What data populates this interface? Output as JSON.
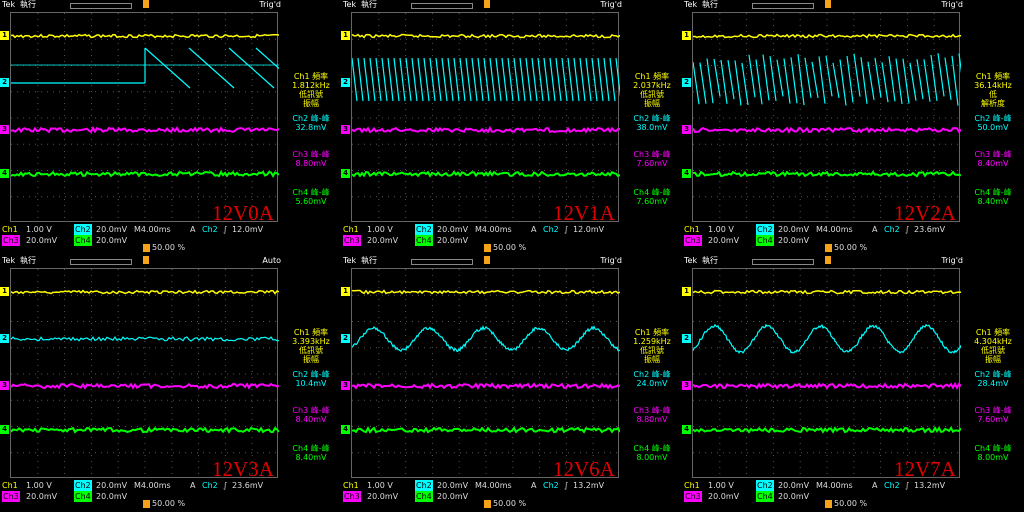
{
  "colors": {
    "ch1": "#ffff00",
    "ch2": "#00ffff",
    "ch3": "#ff00ff",
    "ch4": "#00ff00",
    "label": "#e00000",
    "trigger": "#f6a21a"
  },
  "panels": [
    {
      "tek": "Tek",
      "run": "執行",
      "trig": "Trig'd",
      "label": "12V0A",
      "info": {
        "ch1": [
          "Ch1 頻率",
          "1.812kHz",
          "低訊號",
          "振幅"
        ],
        "ch2": [
          "Ch2 峰-峰",
          "32.8mV"
        ],
        "ch3": [
          "Ch3 峰-峰",
          "8.80mV"
        ],
        "ch4": [
          "Ch4 峰-峰",
          "5.60mV"
        ]
      },
      "bottom": {
        "ch1": "Ch1",
        "ch1v": "1.00 V",
        "ch2": "Ch2",
        "ch2v": "20.0mV",
        "tb": "M4.00ms",
        "a": "A",
        "ach": "Ch2",
        "trigsym": "∫",
        "trigv": "12.0mV",
        "ch3": "Ch3",
        "ch3v": "20.0mV",
        "ch4": "Ch4",
        "ch4v": "20.0mV",
        "pct": "50.00 %"
      }
    },
    {
      "tek": "Tek",
      "run": "執行",
      "trig": "Trig'd",
      "label": "12V1A",
      "info": {
        "ch1": [
          "Ch1 頻率",
          "2.037kHz",
          "低訊號",
          "振幅"
        ],
        "ch2": [
          "Ch2 峰-峰",
          "38.0mV"
        ],
        "ch3": [
          "Ch3 峰-峰",
          "7.60mV"
        ],
        "ch4": [
          "Ch4 峰-峰",
          "7.60mV"
        ]
      },
      "bottom": {
        "ch1": "Ch1",
        "ch1v": "1.00 V",
        "ch2": "Ch2",
        "ch2v": "20.0mV",
        "tb": "M4.00ms",
        "a": "A",
        "ach": "Ch2",
        "trigsym": "∫",
        "trigv": "12.0mV",
        "ch3": "Ch3",
        "ch3v": "20.0mV",
        "ch4": "Ch4",
        "ch4v": "20.0mV",
        "pct": "50.00 %"
      }
    },
    {
      "tek": "Tek",
      "run": "執行",
      "trig": "Trig'd",
      "label": "12V2A",
      "info": {
        "ch1": [
          "Ch1 頻率",
          "36.14kHz",
          "低",
          "解析度"
        ],
        "ch2": [
          "Ch2 峰-峰",
          "50.0mV"
        ],
        "ch3": [
          "Ch3 峰-峰",
          "8.40mV"
        ],
        "ch4": [
          "Ch4 峰-峰",
          "8.40mV"
        ]
      },
      "bottom": {
        "ch1": "Ch1",
        "ch1v": "1.00 V",
        "ch2": "Ch2",
        "ch2v": "20.0mV",
        "tb": "M4.00ms",
        "a": "A",
        "ach": "Ch2",
        "trigsym": "∫",
        "trigv": "23.6mV",
        "ch3": "Ch3",
        "ch3v": "20.0mV",
        "ch4": "Ch4",
        "ch4v": "20.0mV",
        "pct": "50.00 %"
      }
    },
    {
      "tek": "Tek",
      "run": "執行",
      "trig": "Auto",
      "label": "12V3A",
      "info": {
        "ch1": [
          "Ch1 頻率",
          "3.393kHz",
          "低訊號",
          "振幅"
        ],
        "ch2": [
          "Ch2 峰-峰",
          "10.4mV"
        ],
        "ch3": [
          "Ch3 峰-峰",
          "8.40mV"
        ],
        "ch4": [
          "Ch4 峰-峰",
          "8.40mV"
        ]
      },
      "bottom": {
        "ch1": "Ch1",
        "ch1v": "1.00 V",
        "ch2": "Ch2",
        "ch2v": "20.0mV",
        "tb": "M4.00ms",
        "a": "A",
        "ach": "Ch2",
        "trigsym": "∫",
        "trigv": "23.6mV",
        "ch3": "Ch3",
        "ch3v": "20.0mV",
        "ch4": "Ch4",
        "ch4v": "20.0mV",
        "pct": "50.00 %"
      }
    },
    {
      "tek": "Tek",
      "run": "執行",
      "trig": "Trig'd",
      "label": "12V6A",
      "info": {
        "ch1": [
          "Ch1 頻率",
          "1.259kHz",
          "低訊號",
          "振幅"
        ],
        "ch2": [
          "Ch2 峰-峰",
          "24.0mV"
        ],
        "ch3": [
          "Ch3 峰-峰",
          "8.80mV"
        ],
        "ch4": [
          "Ch4 峰-峰",
          "8.00mV"
        ]
      },
      "bottom": {
        "ch1": "Ch1",
        "ch1v": "1.00 V",
        "ch2": "Ch2",
        "ch2v": "20.0mV",
        "tb": "M4.00ms",
        "a": "A",
        "ach": "Ch2",
        "trigsym": "∫",
        "trigv": "13.2mV",
        "ch3": "Ch3",
        "ch3v": "20.0mV",
        "ch4": "Ch4",
        "ch4v": "20.0mV",
        "pct": "50.00 %"
      }
    },
    {
      "tek": "Tek",
      "run": "執行",
      "trig": "Trig'd",
      "label": "12V7A",
      "info": {
        "ch1": [
          "Ch1 頻率",
          "4.304kHz",
          "低訊號",
          "振幅"
        ],
        "ch2": [
          "Ch2 峰-峰",
          "28.4mV"
        ],
        "ch3": [
          "Ch3 峰-峰",
          "7.60mV"
        ],
        "ch4": [
          "Ch4 峰-峰",
          "8.00mV"
        ]
      },
      "bottom": {
        "ch1": "Ch1",
        "ch1v": "1.00 V",
        "ch2": "Ch2",
        "ch2v": "20.0mV",
        "tb": "M4.00ms",
        "a": "A",
        "ach": "Ch2",
        "trigsym": "∫",
        "trigv": "13.2mV",
        "ch3": "Ch3",
        "ch3v": "20.0mV",
        "ch4": "Ch4",
        "ch4v": "20.0mV",
        "pct": "50.00 %"
      }
    }
  ],
  "channel_markers": [
    "1",
    "2",
    "3",
    "4"
  ]
}
